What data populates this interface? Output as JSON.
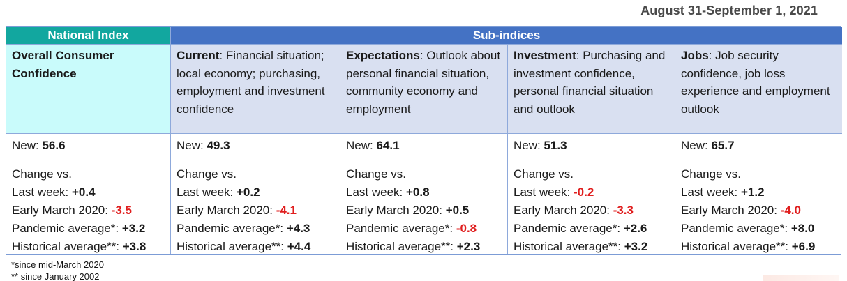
{
  "page": {
    "date": "August 31-September 1, 2021"
  },
  "colors": {
    "teal_header": "#12a79f",
    "blue_header": "#4472c4",
    "light_cyan_cell": "#c9fbfb",
    "lavender_cell": "#d9e0f1",
    "negative_red": "#e01e1e",
    "border_blue": "#8ea9db"
  },
  "table": {
    "group_headers": {
      "national": "National Index",
      "sub": "Sub-indices"
    },
    "columns": [
      {
        "desc_lead": "Overall Consumer Confidence",
        "desc_rest": "",
        "new_label": "New:",
        "new_value": "56.6",
        "change_heading": "Change vs.",
        "changes": [
          {
            "label": "Last week:",
            "value": "+0.4",
            "tone": "pos"
          },
          {
            "label": "Early March 2020:",
            "value": "-3.5",
            "tone": "neg"
          },
          {
            "label": "Pandemic average*:",
            "value": "+3.2",
            "tone": "pos"
          },
          {
            "label": "Historical average**:",
            "value": "+3.8",
            "tone": "pos"
          }
        ]
      },
      {
        "desc_lead": "Current",
        "desc_rest": ": Financial situation; local economy; purchasing, employment and investment confidence",
        "new_label": "New:",
        "new_value": "49.3",
        "change_heading": "Change vs.",
        "changes": [
          {
            "label": "Last week:",
            "value": "+0.2",
            "tone": "pos"
          },
          {
            "label": "Early March 2020:",
            "value": "-4.1",
            "tone": "neg"
          },
          {
            "label": "Pandemic average*:",
            "value": "+4.3",
            "tone": "pos"
          },
          {
            "label": "Historical average**:",
            "value": "+4.4",
            "tone": "pos"
          }
        ]
      },
      {
        "desc_lead": "Expectations",
        "desc_rest": ": Outlook about personal financial situation, community economy and employment",
        "new_label": "New:",
        "new_value": "64.1",
        "change_heading": "Change vs.",
        "changes": [
          {
            "label": "Last week:",
            "value": "+0.8",
            "tone": "pos"
          },
          {
            "label": "Early March 2020:",
            "value": "+0.5",
            "tone": "pos"
          },
          {
            "label": "Pandemic average*:",
            "value": "-0.8",
            "tone": "neg"
          },
          {
            "label": "Historical average**:",
            "value": "+2.3",
            "tone": "pos"
          }
        ]
      },
      {
        "desc_lead": "Investment",
        "desc_rest": ": Purchasing and investment confidence, personal financial situation and outlook",
        "new_label": "New:",
        "new_value": "51.3",
        "change_heading": "Change vs.",
        "changes": [
          {
            "label": "Last week:",
            "value": "-0.2",
            "tone": "neg"
          },
          {
            "label": "Early March 2020:",
            "value": "-3.3",
            "tone": "neg"
          },
          {
            "label": "Pandemic average*:",
            "value": "+2.6",
            "tone": "pos"
          },
          {
            "label": "Historical average**:",
            "value": "+3.2",
            "tone": "pos"
          }
        ]
      },
      {
        "desc_lead": "Jobs",
        "desc_rest": ": Job security confidence, job loss experience and employment outlook",
        "new_label": "New:",
        "new_value": "65.7",
        "change_heading": "Change vs.",
        "changes": [
          {
            "label": "Last week:",
            "value": "+1.2",
            "tone": "pos"
          },
          {
            "label": "Early March 2020:",
            "value": "-4.0",
            "tone": "neg"
          },
          {
            "label": "Pandemic average*:",
            "value": "+8.0",
            "tone": "pos"
          },
          {
            "label": "Historical average**:",
            "value": "+6.9",
            "tone": "pos"
          }
        ]
      }
    ]
  },
  "footnotes": {
    "first": "*since mid-March 2020",
    "second": "** since January 2002"
  }
}
